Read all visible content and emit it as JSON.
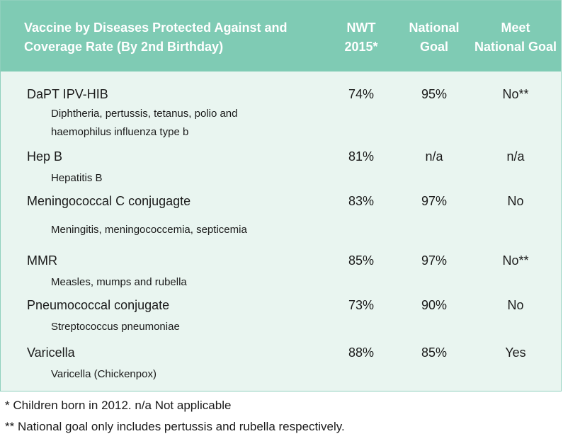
{
  "header": {
    "vaccine_col_line1": "Vaccine by Diseases Protected Against and",
    "vaccine_col_line2": "Coverage Rate (By 2nd Birthday)",
    "nwt_line1": "NWT",
    "nwt_line2": "2015*",
    "goal_line1": "National",
    "goal_line2": "Goal",
    "meet_line1": "Meet",
    "meet_line2": "National Goal"
  },
  "rows": [
    {
      "vaccine": "DaPT IPV-HIB",
      "description_line1": "Diphtheria, pertussis, tetanus, polio and",
      "description_line2": "haemophilus influenza type b",
      "nwt": "74%",
      "goal": "95%",
      "meet": "No**"
    },
    {
      "vaccine": "Hep B",
      "description_line1": "Hepatitis B",
      "nwt": "81%",
      "goal": "n/a",
      "meet": "n/a"
    },
    {
      "vaccine": "Meningococcal C conjugagte",
      "description_line1": "Meningitis, meningococcemia, septicemia",
      "nwt": "83%",
      "goal": "97%",
      "meet": "No"
    },
    {
      "vaccine": "MMR",
      "description_line1": "Measles, mumps and rubella",
      "nwt": "85%",
      "goal": "97%",
      "meet": "No**"
    },
    {
      "vaccine": "Pneumococcal conjugate",
      "description_line1": "Streptococcus pneumoniae",
      "nwt": "73%",
      "goal": "90%",
      "meet": "No"
    },
    {
      "vaccine": "Varicella",
      "description_line1": "Varicella (Chickenpox)",
      "nwt": "88%",
      "goal": "85%",
      "meet": "Yes"
    }
  ],
  "footnotes": {
    "note1": "* Children born in 2012. n/a Not applicable",
    "note2": "** National goal only includes pertussis and rubella respectively."
  },
  "colors": {
    "header_bg": "#7fcbb4",
    "body_bg": "#e9f5f0",
    "border": "#8fd0bd"
  }
}
